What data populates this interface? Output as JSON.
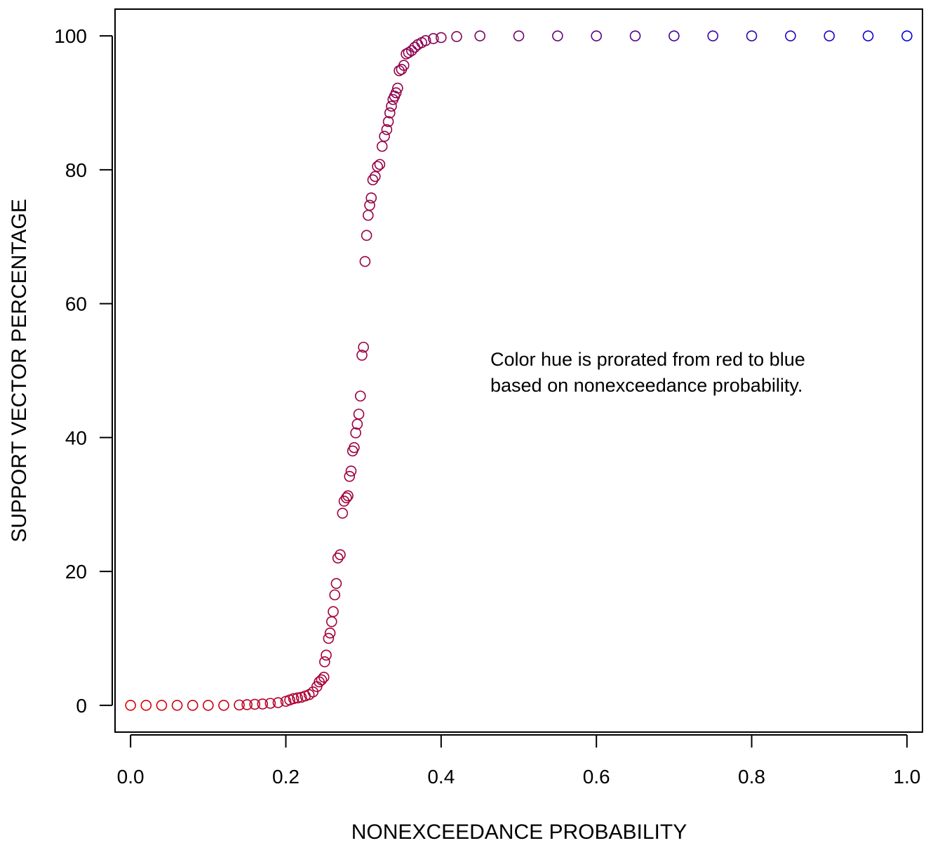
{
  "chart_data": {
    "type": "scatter",
    "title": "",
    "xlabel": "NONEXCEEDANCE PROBABILITY",
    "ylabel": "SUPPORT VECTOR PERCENTAGE",
    "xlim": [
      -0.02,
      1.02
    ],
    "ylim": [
      -4,
      104
    ],
    "x_ticks": [
      0.0,
      0.2,
      0.4,
      0.6,
      0.8,
      1.0
    ],
    "x_tick_labels": [
      "0.0",
      "0.2",
      "0.4",
      "0.6",
      "0.8",
      "1.0"
    ],
    "y_ticks": [
      0,
      20,
      40,
      60,
      80,
      100
    ],
    "y_tick_labels": [
      "0",
      "20",
      "40",
      "60",
      "80",
      "100"
    ],
    "annotation": [
      "Color hue is prorated from red to blue",
      "based on nonexceedance probability."
    ],
    "grid": false,
    "marker": "open-circle",
    "color_start": "#dd0000",
    "color_end": "#0000dd",
    "points": [
      [
        0.0,
        0.0
      ],
      [
        0.02,
        0.0
      ],
      [
        0.04,
        0.0
      ],
      [
        0.06,
        0.0
      ],
      [
        0.08,
        0.0
      ],
      [
        0.1,
        0.0
      ],
      [
        0.12,
        0.0
      ],
      [
        0.14,
        0.05
      ],
      [
        0.15,
        0.1
      ],
      [
        0.16,
        0.15
      ],
      [
        0.17,
        0.2
      ],
      [
        0.18,
        0.3
      ],
      [
        0.19,
        0.4
      ],
      [
        0.2,
        0.6
      ],
      [
        0.205,
        0.8
      ],
      [
        0.21,
        1.0
      ],
      [
        0.215,
        1.1
      ],
      [
        0.22,
        1.2
      ],
      [
        0.225,
        1.4
      ],
      [
        0.23,
        1.6
      ],
      [
        0.235,
        2.0
      ],
      [
        0.24,
        2.8
      ],
      [
        0.243,
        3.5
      ],
      [
        0.246,
        3.8
      ],
      [
        0.249,
        4.2
      ],
      [
        0.25,
        6.5
      ],
      [
        0.252,
        7.5
      ],
      [
        0.255,
        10.0
      ],
      [
        0.257,
        10.8
      ],
      [
        0.259,
        12.5
      ],
      [
        0.261,
        14.0
      ],
      [
        0.263,
        16.5
      ],
      [
        0.265,
        18.2
      ],
      [
        0.267,
        22.0
      ],
      [
        0.27,
        22.5
      ],
      [
        0.273,
        28.7
      ],
      [
        0.275,
        30.5
      ],
      [
        0.278,
        31.0
      ],
      [
        0.28,
        31.3
      ],
      [
        0.282,
        34.2
      ],
      [
        0.284,
        35.0
      ],
      [
        0.286,
        38.0
      ],
      [
        0.288,
        38.5
      ],
      [
        0.29,
        40.7
      ],
      [
        0.292,
        42.0
      ],
      [
        0.294,
        43.5
      ],
      [
        0.296,
        46.2
      ],
      [
        0.298,
        52.3
      ],
      [
        0.3,
        53.5
      ],
      [
        0.302,
        66.3
      ],
      [
        0.304,
        70.2
      ],
      [
        0.306,
        73.2
      ],
      [
        0.308,
        74.7
      ],
      [
        0.31,
        75.8
      ],
      [
        0.312,
        78.5
      ],
      [
        0.315,
        79.0
      ],
      [
        0.318,
        80.5
      ],
      [
        0.321,
        80.8
      ],
      [
        0.324,
        83.5
      ],
      [
        0.327,
        85.0
      ],
      [
        0.33,
        86.0
      ],
      [
        0.332,
        87.2
      ],
      [
        0.334,
        88.5
      ],
      [
        0.336,
        89.5
      ],
      [
        0.338,
        90.5
      ],
      [
        0.34,
        91.0
      ],
      [
        0.342,
        91.5
      ],
      [
        0.344,
        92.2
      ],
      [
        0.346,
        94.8
      ],
      [
        0.349,
        95.0
      ],
      [
        0.352,
        95.6
      ],
      [
        0.355,
        97.3
      ],
      [
        0.358,
        97.5
      ],
      [
        0.362,
        97.8
      ],
      [
        0.366,
        98.3
      ],
      [
        0.37,
        98.7
      ],
      [
        0.375,
        99.0
      ],
      [
        0.38,
        99.3
      ],
      [
        0.39,
        99.6
      ],
      [
        0.4,
        99.75
      ],
      [
        0.42,
        99.9
      ],
      [
        0.45,
        100.0
      ],
      [
        0.5,
        100.0
      ],
      [
        0.55,
        100.0
      ],
      [
        0.6,
        100.0
      ],
      [
        0.65,
        100.0
      ],
      [
        0.7,
        100.0
      ],
      [
        0.75,
        100.0
      ],
      [
        0.8,
        100.0
      ],
      [
        0.85,
        100.0
      ],
      [
        0.9,
        100.0
      ],
      [
        0.95,
        100.0
      ],
      [
        1.0,
        100.0
      ]
    ]
  }
}
